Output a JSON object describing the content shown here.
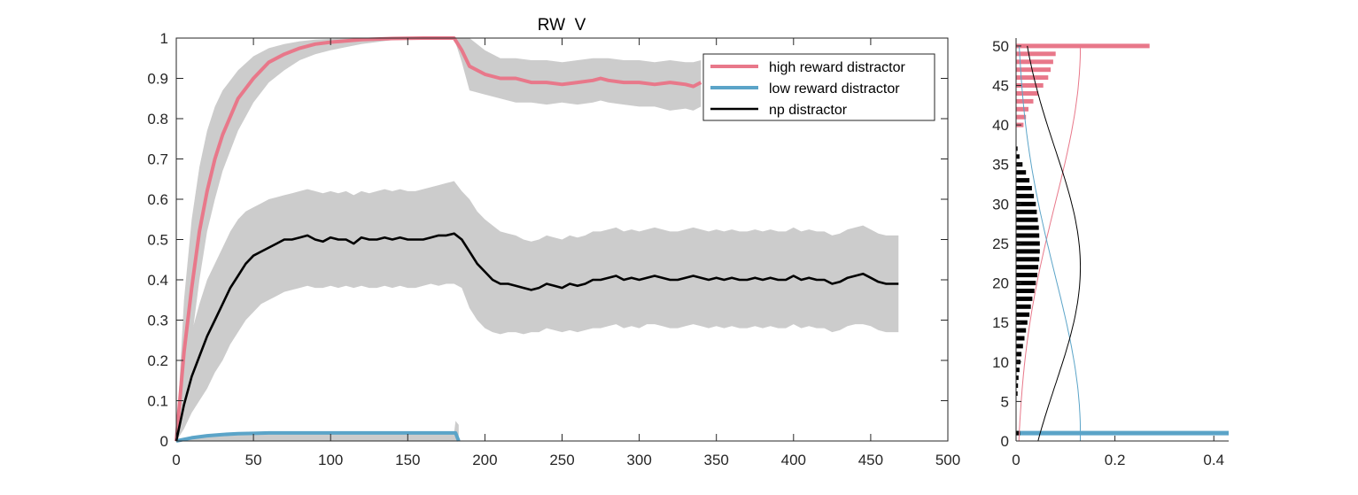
{
  "chart_data": [
    {
      "type": "line",
      "title": "RW  V",
      "xlabel": "",
      "ylabel": "",
      "xlim": [
        0,
        500
      ],
      "ylim": [
        0,
        1
      ],
      "xticks": [
        0,
        50,
        100,
        150,
        200,
        250,
        300,
        350,
        400,
        450,
        500
      ],
      "yticks": [
        0,
        0.1,
        0.2,
        0.3,
        0.4,
        0.5,
        0.6,
        0.7,
        0.8,
        0.9,
        1
      ],
      "legend_position": "top-right",
      "series": [
        {
          "name": "high reward distractor",
          "color": "#e8788a",
          "x": [
            0,
            5,
            10,
            15,
            20,
            25,
            30,
            40,
            50,
            60,
            70,
            80,
            90,
            100,
            120,
            140,
            160,
            180,
            185,
            190,
            200,
            210,
            220,
            230,
            240,
            250,
            260,
            270,
            275,
            280,
            290,
            300,
            310,
            320,
            330,
            335,
            340
          ],
          "values": [
            0,
            0.22,
            0.38,
            0.52,
            0.62,
            0.7,
            0.76,
            0.85,
            0.9,
            0.94,
            0.96,
            0.975,
            0.985,
            0.99,
            0.996,
            0.999,
            1.0,
            1.0,
            0.97,
            0.93,
            0.91,
            0.9,
            0.9,
            0.89,
            0.89,
            0.885,
            0.89,
            0.895,
            0.9,
            0.895,
            0.89,
            0.89,
            0.885,
            0.89,
            0.885,
            0.88,
            0.89
          ],
          "band_lower": [
            0,
            0.1,
            0.25,
            0.4,
            0.52,
            0.6,
            0.67,
            0.77,
            0.84,
            0.89,
            0.92,
            0.945,
            0.96,
            0.97,
            0.985,
            0.995,
            0.998,
            1.0,
            0.94,
            0.87,
            0.86,
            0.85,
            0.84,
            0.84,
            0.835,
            0.84,
            0.835,
            0.84,
            0.845,
            0.84,
            0.835,
            0.83,
            0.83,
            0.82,
            0.825,
            0.82,
            0.83
          ],
          "band_upper": [
            0,
            0.35,
            0.55,
            0.68,
            0.77,
            0.83,
            0.87,
            0.92,
            0.955,
            0.975,
            0.985,
            0.992,
            0.996,
            0.998,
            1.0,
            1.0,
            1.0,
            1.0,
            1.0,
            1.0,
            0.97,
            0.95,
            0.95,
            0.945,
            0.945,
            0.94,
            0.945,
            0.95,
            0.95,
            0.95,
            0.945,
            0.945,
            0.94,
            0.945,
            0.94,
            0.94,
            0.945
          ]
        },
        {
          "name": "low reward distractor",
          "color": "#5ba4c8",
          "x": [
            0,
            10,
            20,
            30,
            40,
            50,
            60,
            80,
            100,
            120,
            140,
            160,
            180,
            181,
            182,
            183
          ],
          "values": [
            0,
            0.008,
            0.013,
            0.016,
            0.018,
            0.019,
            0.02,
            0.02,
            0.02,
            0.02,
            0.02,
            0.02,
            0.02,
            0.02,
            0.01,
            0.0
          ],
          "band_lower": [
            0,
            0,
            0,
            0,
            0,
            0,
            0,
            0,
            0,
            0,
            0,
            0,
            0,
            0,
            0,
            0
          ],
          "band_upper": [
            0,
            0.008,
            0.013,
            0.016,
            0.018,
            0.019,
            0.02,
            0.02,
            0.02,
            0.02,
            0.02,
            0.02,
            0.02,
            0.05,
            0.045,
            0.04
          ]
        },
        {
          "name": "np distractor",
          "color": "#000000",
          "x": [
            0,
            5,
            10,
            15,
            20,
            25,
            30,
            35,
            40,
            45,
            50,
            55,
            60,
            65,
            70,
            75,
            80,
            85,
            90,
            95,
            100,
            105,
            110,
            115,
            120,
            125,
            130,
            135,
            140,
            145,
            150,
            155,
            160,
            165,
            170,
            175,
            180,
            185,
            190,
            195,
            200,
            205,
            210,
            215,
            220,
            225,
            230,
            235,
            240,
            245,
            250,
            255,
            260,
            265,
            270,
            275,
            280,
            285,
            290,
            295,
            300,
            305,
            310,
            315,
            320,
            325,
            330,
            335,
            340,
            345,
            350,
            355,
            360,
            365,
            370,
            375,
            380,
            385,
            390,
            395,
            400,
            405,
            410,
            415,
            420,
            425,
            430,
            435,
            440,
            445,
            450,
            455,
            460,
            465,
            468
          ],
          "values": [
            0,
            0.09,
            0.16,
            0.21,
            0.26,
            0.3,
            0.34,
            0.38,
            0.41,
            0.44,
            0.46,
            0.47,
            0.48,
            0.49,
            0.5,
            0.5,
            0.505,
            0.51,
            0.5,
            0.495,
            0.505,
            0.5,
            0.5,
            0.49,
            0.505,
            0.5,
            0.5,
            0.505,
            0.5,
            0.505,
            0.5,
            0.5,
            0.5,
            0.505,
            0.51,
            0.51,
            0.515,
            0.5,
            0.47,
            0.44,
            0.42,
            0.4,
            0.39,
            0.39,
            0.385,
            0.38,
            0.375,
            0.38,
            0.39,
            0.385,
            0.38,
            0.39,
            0.385,
            0.39,
            0.4,
            0.4,
            0.405,
            0.41,
            0.4,
            0.405,
            0.4,
            0.405,
            0.41,
            0.405,
            0.4,
            0.4,
            0.405,
            0.41,
            0.405,
            0.4,
            0.405,
            0.4,
            0.405,
            0.4,
            0.4,
            0.405,
            0.4,
            0.405,
            0.4,
            0.4,
            0.41,
            0.4,
            0.405,
            0.4,
            0.4,
            0.39,
            0.395,
            0.405,
            0.41,
            0.415,
            0.405,
            0.395,
            0.39,
            0.39,
            0.39
          ],
          "band_lower": [
            0,
            0.03,
            0.07,
            0.1,
            0.13,
            0.17,
            0.2,
            0.24,
            0.27,
            0.3,
            0.32,
            0.34,
            0.35,
            0.36,
            0.37,
            0.375,
            0.38,
            0.385,
            0.38,
            0.38,
            0.385,
            0.38,
            0.385,
            0.38,
            0.385,
            0.38,
            0.38,
            0.385,
            0.38,
            0.385,
            0.38,
            0.38,
            0.385,
            0.39,
            0.385,
            0.39,
            0.39,
            0.38,
            0.33,
            0.3,
            0.28,
            0.27,
            0.265,
            0.27,
            0.27,
            0.265,
            0.27,
            0.27,
            0.28,
            0.275,
            0.27,
            0.275,
            0.27,
            0.275,
            0.28,
            0.28,
            0.285,
            0.29,
            0.28,
            0.285,
            0.28,
            0.29,
            0.29,
            0.285,
            0.28,
            0.28,
            0.285,
            0.29,
            0.285,
            0.28,
            0.285,
            0.28,
            0.285,
            0.28,
            0.28,
            0.285,
            0.28,
            0.285,
            0.28,
            0.28,
            0.29,
            0.28,
            0.285,
            0.28,
            0.28,
            0.27,
            0.275,
            0.285,
            0.29,
            0.29,
            0.285,
            0.275,
            0.27,
            0.27,
            0.27
          ],
          "band_upper": [
            0,
            0.17,
            0.27,
            0.34,
            0.4,
            0.44,
            0.48,
            0.52,
            0.55,
            0.57,
            0.58,
            0.59,
            0.6,
            0.605,
            0.61,
            0.615,
            0.62,
            0.625,
            0.62,
            0.615,
            0.62,
            0.615,
            0.62,
            0.61,
            0.62,
            0.615,
            0.62,
            0.625,
            0.62,
            0.625,
            0.62,
            0.62,
            0.625,
            0.63,
            0.635,
            0.64,
            0.645,
            0.62,
            0.6,
            0.57,
            0.55,
            0.535,
            0.52,
            0.515,
            0.51,
            0.5,
            0.495,
            0.5,
            0.51,
            0.505,
            0.5,
            0.51,
            0.505,
            0.51,
            0.52,
            0.52,
            0.525,
            0.53,
            0.52,
            0.525,
            0.52,
            0.525,
            0.53,
            0.525,
            0.52,
            0.52,
            0.525,
            0.53,
            0.525,
            0.52,
            0.525,
            0.52,
            0.525,
            0.52,
            0.52,
            0.525,
            0.52,
            0.525,
            0.52,
            0.52,
            0.53,
            0.52,
            0.525,
            0.52,
            0.52,
            0.51,
            0.515,
            0.525,
            0.53,
            0.535,
            0.525,
            0.515,
            0.51,
            0.51,
            0.51
          ]
        }
      ],
      "band_color": "#cccccc"
    },
    {
      "type": "bar",
      "orientation": "horizontal",
      "title": "",
      "xlabel": "",
      "ylabel": "",
      "xlim": [
        0,
        0.43
      ],
      "ylim": [
        0,
        51
      ],
      "xticks": [
        0,
        0.2,
        0.4
      ],
      "yticks": [
        0,
        5,
        10,
        15,
        20,
        25,
        30,
        35,
        40,
        45,
        50
      ],
      "series": [
        {
          "name": "high reward distractor",
          "color": "#e8788a",
          "bins": [
            40,
            41,
            42,
            43,
            44,
            45,
            46,
            47,
            48,
            49,
            50
          ],
          "values": [
            0.015,
            0.02,
            0.025,
            0.035,
            0.045,
            0.055,
            0.065,
            0.07,
            0.075,
            0.08,
            0.27
          ]
        },
        {
          "name": "low reward distractor",
          "color": "#5ba4c8",
          "bins": [
            1
          ],
          "values": [
            0.43
          ]
        },
        {
          "name": "np distractor",
          "color": "#000000",
          "bins": [
            1,
            6,
            7,
            8,
            9,
            10,
            11,
            12,
            13,
            14,
            15,
            16,
            17,
            18,
            19,
            20,
            21,
            22,
            23,
            24,
            25,
            26,
            27,
            28,
            29,
            30,
            31,
            32,
            33,
            34,
            35,
            36,
            37
          ],
          "values": [
            0.008,
            0.003,
            0.004,
            0.005,
            0.007,
            0.009,
            0.011,
            0.014,
            0.017,
            0.02,
            0.023,
            0.027,
            0.03,
            0.033,
            0.037,
            0.04,
            0.043,
            0.045,
            0.047,
            0.048,
            0.048,
            0.047,
            0.046,
            0.044,
            0.042,
            0.04,
            0.036,
            0.032,
            0.027,
            0.02,
            0.013,
            0.007,
            0.003
          ]
        }
      ],
      "fit_curves": [
        {
          "name": "high reward distractor",
          "color": "#e8788a",
          "mean": 50,
          "sd": 20,
          "scale": 0.13
        },
        {
          "name": "low reward distractor",
          "color": "#5ba4c8",
          "mean": 1,
          "sd": 20,
          "scale": 0.13
        },
        {
          "name": "np distractor",
          "color": "#000000",
          "mean": 22,
          "sd": 15,
          "scale": 0.13
        }
      ]
    }
  ]
}
